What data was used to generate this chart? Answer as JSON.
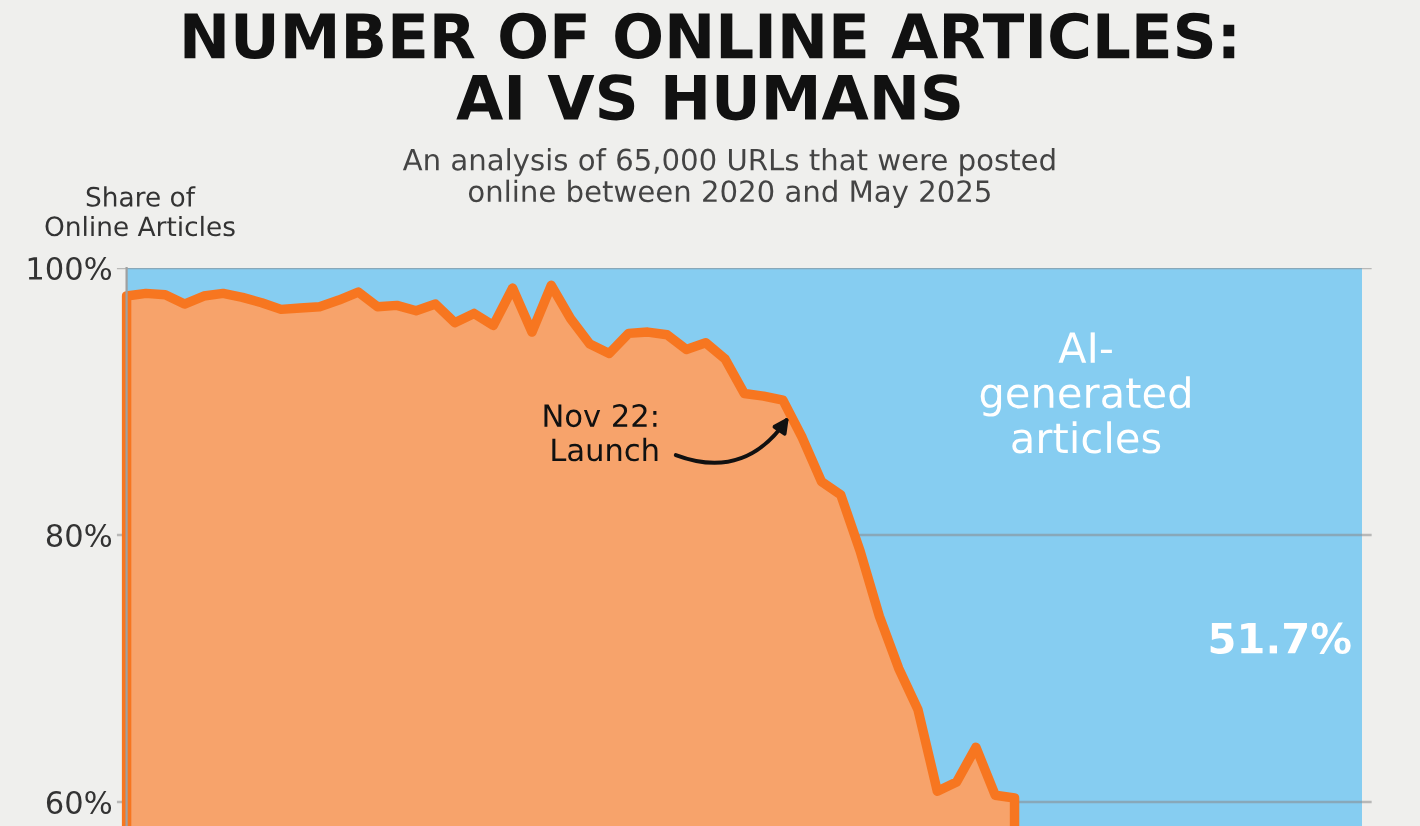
{
  "chart_data": {
    "type": "area",
    "title": "NUMBER OF ONLINE ARTICLES:\nAI VS HUMANS",
    "subtitle": "An analysis of 65,000 URLs that were posted\nonline between 2020 and May 2025",
    "ylabel": "Share of\nOnline Articles",
    "categories": [
      null,
      null,
      null,
      null,
      null,
      null,
      null,
      null,
      null,
      null,
      null,
      null,
      null,
      null,
      null,
      null,
      null,
      null,
      null,
      null,
      null,
      null,
      null,
      null,
      null,
      null,
      null,
      null,
      null,
      null,
      null,
      null,
      null,
      null,
      null,
      null,
      null,
      null,
      null,
      null,
      null,
      null,
      null,
      null,
      null,
      null,
      null,
      null,
      null,
      null,
      null,
      null,
      null,
      null,
      null,
      null,
      null,
      null,
      null,
      null,
      null,
      null,
      null,
      null,
      null
    ],
    "series": [
      {
        "color": "#f7a36b",
        "values": [
          97.9,
          98.1,
          98.0,
          97.3,
          97.9,
          98.1,
          97.8,
          97.4,
          96.9,
          97.0,
          97.1,
          97.6,
          98.2,
          97.1,
          97.2,
          96.8,
          97.3,
          95.9,
          96.6,
          95.7,
          98.5,
          95.2,
          98.7,
          96.2,
          94.3,
          93.6,
          95.1,
          95.2,
          95.0,
          93.9,
          94.4,
          93.2,
          90.6,
          90.4,
          90.1,
          87.3,
          84.0,
          83.0,
          78.8,
          73.9,
          70.0,
          66.9,
          60.8,
          61.5,
          64.1,
          60.5,
          60.3,
          null,
          null,
          null,
          null,
          null,
          null,
          null,
          null,
          null,
          null,
          null,
          null,
          null,
          null,
          null,
          null,
          null,
          null
        ]
      }
    ],
    "bands": [
      {
        "axis": "y",
        "from": 58.2,
        "to": 100,
        "label": "AI-\ngenerated\narticles",
        "color": "#86cdf1"
      }
    ],
    "ylim": [
      58.2,
      100
    ],
    "yticks": [
      {
        "value": 100,
        "label": "100%"
      },
      {
        "value": 80,
        "label": "80%"
      },
      {
        "value": 60,
        "label": "60%"
      }
    ],
    "grid": "y",
    "annotations": [
      "Nov 22:\nLaunch",
      "51.7%"
    ]
  }
}
